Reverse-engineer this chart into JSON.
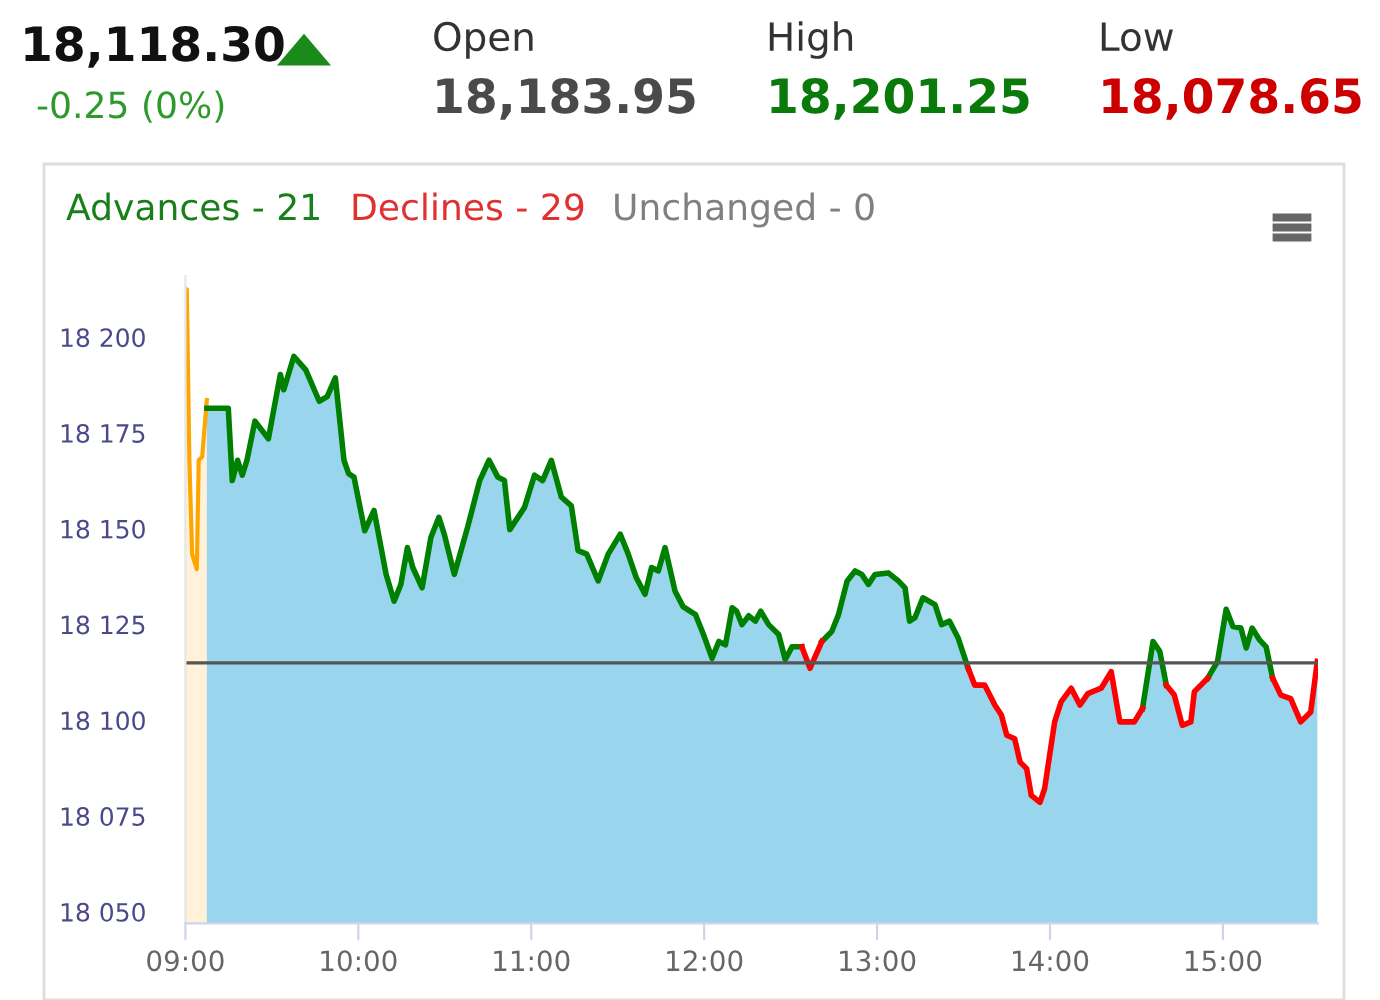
{
  "chart_data": {
    "type": "area",
    "annotations": [
      "18,118.30",
      "-0.25 (0%)",
      "Open",
      "18,183.95",
      "High",
      "18,201.25",
      "Low",
      "18,078.65",
      "Advances - 21",
      "Declines - 29",
      "Unchanged - 0"
    ],
    "series": [
      {
        "color": "#ffa500",
        "x": [
          9.0,
          9.008,
          9.023,
          9.039,
          9.066,
          9.077,
          9.097,
          9.108,
          9.124
        ],
        "values": [
          18212.5,
          18212.5,
          18167.9,
          18143.4,
          18139.5,
          18167.9,
          18168.8,
          18174.9,
          18183.6
        ]
      },
      {
        "color": "#7fcbe8",
        "x": [
          9.124,
          9.248,
          9.271,
          9.302,
          9.329,
          9.356,
          9.402,
          9.48,
          9.518,
          9.549,
          9.569,
          9.627,
          9.696,
          9.774,
          9.82,
          9.867,
          9.917,
          9.944,
          9.975,
          10.037,
          10.091,
          10.161,
          10.207,
          10.246,
          10.284,
          10.315,
          10.369,
          10.42,
          10.466,
          10.497,
          10.555,
          10.632,
          10.702,
          10.756,
          10.807,
          10.845,
          10.876,
          10.961,
          11.019,
          11.066,
          11.116,
          11.174,
          11.232,
          11.271,
          11.321,
          11.387,
          11.445,
          11.515,
          11.561,
          11.607,
          11.658,
          11.696,
          11.735,
          11.774,
          11.832,
          11.878,
          11.95,
          11.996,
          12.046,
          12.085,
          12.123,
          12.162,
          12.188,
          12.219,
          12.258,
          12.296,
          12.327,
          12.373,
          12.431,
          12.469,
          12.508,
          12.565,
          12.612,
          12.681,
          12.738,
          12.777,
          12.827,
          12.873,
          12.912,
          12.95,
          12.988,
          13.065,
          13.123,
          13.162,
          13.188,
          13.219,
          13.265,
          13.335,
          13.373,
          13.419,
          13.469,
          13.508,
          13.527,
          13.565,
          13.623,
          13.681,
          13.719,
          13.75,
          13.796,
          13.827,
          13.865,
          13.892,
          13.942,
          13.969,
          14.027,
          14.065,
          14.123,
          14.173,
          14.219,
          14.296,
          14.354,
          14.404,
          14.488,
          14.535,
          14.596,
          14.635,
          14.673,
          14.719,
          14.765,
          14.815,
          14.835,
          14.912,
          14.969,
          15.019,
          15.058,
          15.104,
          15.135,
          15.169,
          15.212,
          15.25,
          15.288,
          15.335,
          15.392,
          15.45,
          15.508,
          15.546
        ],
        "values": [
          18181.5,
          18181.5,
          18162.6,
          18167.9,
          18164.0,
          18167.9,
          18178.1,
          18173.5,
          18182.8,
          18190.3,
          18186.3,
          18195.0,
          18191.5,
          18183.3,
          18184.5,
          18189.4,
          18167.9,
          18164.4,
          18163.5,
          18149.5,
          18154.8,
          18138.1,
          18131.1,
          18135.5,
          18145.1,
          18139.9,
          18134.6,
          18147.8,
          18153.0,
          18148.6,
          18138.1,
          18150.4,
          18162.6,
          18167.9,
          18163.5,
          18162.6,
          18149.8,
          18155.6,
          18164.0,
          18162.6,
          18167.9,
          18158.3,
          18156.0,
          18144.3,
          18143.4,
          18136.4,
          18143.4,
          18148.6,
          18143.4,
          18137.3,
          18132.9,
          18139.9,
          18139.0,
          18145.1,
          18133.7,
          18129.7,
          18127.6,
          18122.4,
          18116.2,
          18120.6,
          18119.7,
          18129.4,
          18128.5,
          18125.0,
          18127.3,
          18125.9,
          18128.5,
          18125.0,
          18122.4,
          18115.9,
          18119.2,
          18119.2,
          18113.6,
          18120.6,
          18123.2,
          18127.6,
          18136.4,
          18139.0,
          18138.1,
          18135.5,
          18138.1,
          18138.5,
          18136.4,
          18134.6,
          18125.9,
          18126.8,
          18132.0,
          18130.2,
          18125.0,
          18125.9,
          18121.5,
          18116.2,
          18113.6,
          18109.2,
          18109.2,
          18104.0,
          18101.4,
          18096.1,
          18095.2,
          18089.1,
          18087.4,
          18080.4,
          18078.6,
          18082.2,
          18099.6,
          18104.9,
          18108.4,
          18104.0,
          18107.0,
          18108.4,
          18112.7,
          18099.6,
          18099.6,
          18103.1,
          18120.6,
          18118.0,
          18109.2,
          18106.6,
          18098.7,
          18099.6,
          18107.5,
          18111.0,
          18115.4,
          18129.0,
          18124.5,
          18124.1,
          18118.9,
          18124.1,
          18121.0,
          18119.2,
          18111.0,
          18106.6,
          18105.7,
          18099.6,
          18102.2,
          18115.4
        ]
      },
      {
        "type": "line",
        "color": "#008000",
        "x": [
          9.124,
          9.248,
          9.271,
          9.302,
          9.329,
          9.356,
          9.402,
          9.48,
          9.518,
          9.549,
          9.569,
          9.627,
          9.696,
          9.774,
          9.82,
          9.867,
          9.917,
          9.944,
          9.975,
          10.037,
          10.091,
          10.161,
          10.207,
          10.246,
          10.284,
          10.315,
          10.369,
          10.42,
          10.466,
          10.497,
          10.555,
          10.632,
          10.702,
          10.756,
          10.807,
          10.845,
          10.876,
          10.961,
          11.019,
          11.066,
          11.116,
          11.174,
          11.232,
          11.271,
          11.321,
          11.387,
          11.445,
          11.515,
          11.561,
          11.607,
          11.658,
          11.696,
          11.735,
          11.774,
          11.832,
          11.878,
          11.95,
          11.996,
          12.046,
          12.085,
          12.123,
          12.162,
          12.188,
          12.219,
          12.258,
          12.296,
          12.327,
          12.373,
          12.431,
          12.469,
          12.508,
          12.565,
          12.612,
          12.681,
          12.738,
          12.777,
          12.827,
          12.873,
          12.912,
          12.95,
          12.988,
          13.065,
          13.123,
          13.162,
          13.188,
          13.219,
          13.265,
          13.335,
          13.373,
          13.419,
          13.469,
          13.508,
          13.527,
          13.565,
          13.623,
          13.681,
          13.719,
          13.75,
          13.796,
          13.827,
          13.865,
          13.892,
          13.942,
          13.969,
          14.027,
          14.065,
          14.123,
          14.173,
          14.219,
          14.296,
          14.354,
          14.404,
          14.488,
          14.535,
          14.596,
          14.635,
          14.673,
          14.719,
          14.765,
          14.815,
          14.835,
          14.912,
          14.969,
          15.019,
          15.058,
          15.104,
          15.135,
          15.169,
          15.212,
          15.25,
          15.288
        ],
        "values": [
          18181.5,
          18181.5,
          18162.6,
          18167.9,
          18164.0,
          18167.9,
          18178.1,
          18173.5,
          18182.8,
          18190.3,
          18186.3,
          18195.0,
          18191.5,
          18183.3,
          18184.5,
          18189.4,
          18167.9,
          18164.4,
          18163.5,
          18149.5,
          18154.8,
          18138.1,
          18131.1,
          18135.5,
          18145.1,
          18139.9,
          18134.6,
          18147.8,
          18153.0,
          18148.6,
          18138.1,
          18150.4,
          18162.6,
          18167.9,
          18163.5,
          18162.6,
          18149.8,
          18155.6,
          18164.0,
          18162.6,
          18167.9,
          18158.3,
          18156.0,
          18144.3,
          18143.4,
          18136.4,
          18143.4,
          18148.6,
          18143.4,
          18137.3,
          18132.9,
          18139.9,
          18139.0,
          18145.1,
          18133.7,
          18129.7,
          18127.6,
          18122.4,
          18116.2,
          18120.6,
          18119.7,
          18129.4,
          18128.5,
          18125.0,
          18127.3,
          18125.9,
          18128.5,
          18125.0,
          18122.4,
          18115.9,
          18119.2,
          18119.2,
          null,
          18120.6,
          18123.2,
          18127.6,
          18136.4,
          18139.0,
          18138.1,
          18135.5,
          18138.1,
          18138.5,
          18136.4,
          18134.6,
          18125.9,
          18126.8,
          18132.0,
          18130.2,
          18125.0,
          18125.9,
          18121.5,
          18116.2,
          18113.6,
          null,
          null,
          null,
          null,
          null,
          null,
          null,
          null,
          null,
          null,
          null,
          null,
          null,
          null,
          null,
          null,
          null,
          null,
          null,
          null,
          18103.1,
          18120.6,
          18118.0,
          18109.2,
          null,
          null,
          null,
          null,
          18111.0,
          18115.4,
          18129.0,
          18124.5,
          18124.1,
          18118.9,
          18124.1,
          18121.0,
          18119.2,
          18111.0
        ]
      },
      {
        "type": "line",
        "color": "#ff0000",
        "x": [
          12.565,
          12.612,
          12.681,
          12.738,
          12.777,
          12.827,
          12.873,
          12.912,
          12.95,
          12.988,
          13.065,
          13.123,
          13.162,
          13.188,
          13.219,
          13.265,
          13.335,
          13.373,
          13.419,
          13.469,
          13.508,
          13.527,
          13.565,
          13.623,
          13.681,
          13.719,
          13.75,
          13.796,
          13.827,
          13.865,
          13.892,
          13.942,
          13.969,
          14.027,
          14.065,
          14.123,
          14.173,
          14.219,
          14.296,
          14.354,
          14.404,
          14.488,
          14.535,
          14.596,
          14.635,
          14.673,
          14.719,
          14.765,
          14.815,
          14.835,
          14.912,
          14.969,
          15.019,
          15.058,
          15.104,
          15.135,
          15.169,
          15.212,
          15.25,
          15.288,
          15.335,
          15.392,
          15.45,
          15.508,
          15.546
        ],
        "values": [
          18119.2,
          18113.6,
          18120.6,
          null,
          null,
          null,
          null,
          null,
          null,
          null,
          null,
          null,
          null,
          null,
          null,
          null,
          null,
          null,
          null,
          null,
          null,
          18113.6,
          18109.2,
          18109.2,
          18104.0,
          18101.4,
          18096.1,
          18095.2,
          18089.1,
          18087.4,
          18080.4,
          18078.6,
          18082.2,
          18099.6,
          18104.9,
          18108.4,
          18104.0,
          18107.0,
          18108.4,
          18112.7,
          18099.6,
          18099.6,
          18103.1,
          null,
          null,
          18109.2,
          18106.6,
          18098.7,
          18099.6,
          18107.5,
          18111.0,
          null,
          null,
          null,
          null,
          null,
          null,
          null,
          null,
          18111.0,
          18106.6,
          18105.7,
          18099.6,
          18102.2,
          18115.4
        ]
      }
    ],
    "ref_lines": [
      {
        "axis": "y",
        "value": 18115,
        "color": "#555555"
      }
    ],
    "xlim": [
      9,
      15.55
    ],
    "xticks": [
      {
        "value": 9,
        "label": "09:00"
      },
      {
        "value": 10,
        "label": "10:00"
      },
      {
        "value": 11,
        "label": "11:00"
      },
      {
        "value": 12,
        "label": "12:00"
      },
      {
        "value": 13,
        "label": "13:00"
      },
      {
        "value": 14,
        "label": "14:00"
      },
      {
        "value": 15,
        "label": "15:00"
      }
    ],
    "ylim": [
      18047,
      18216
    ],
    "yticks": [
      {
        "value": 18050,
        "label": "18 050"
      },
      {
        "value": 18075,
        "label": "18 075"
      },
      {
        "value": 18100,
        "label": "18 100"
      },
      {
        "value": 18125,
        "label": "18 125"
      },
      {
        "value": 18150,
        "label": "18 150"
      },
      {
        "value": 18175,
        "label": "18 175"
      },
      {
        "value": 18200,
        "label": "18 200"
      }
    ],
    "grid": false,
    "legend": false
  }
}
